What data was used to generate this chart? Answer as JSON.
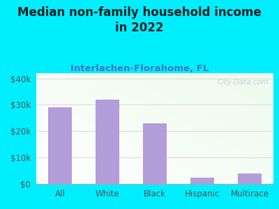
{
  "title": "Median non-family household income\nin 2022",
  "subtitle": "Interlachen-Florahome, FL",
  "categories": [
    "All",
    "White",
    "Black",
    "Hispanic",
    "Multirace"
  ],
  "values": [
    29000,
    32000,
    23000,
    2500,
    4000
  ],
  "bar_color": "#b39ddb",
  "background_outer": "#00eeff",
  "background_plot_top": "#f5fff5",
  "background_plot_bottom": "#e0f5e0",
  "title_color": "#222222",
  "subtitle_color": "#4477bb",
  "tick_color": "#555555",
  "grid_color": "#dddddd",
  "ylabel_ticks": [
    "$0",
    "$10k",
    "$20k",
    "$30k",
    "$40k"
  ],
  "ylabel_values": [
    0,
    10000,
    20000,
    30000,
    40000
  ],
  "ylim": [
    0,
    42000
  ],
  "watermark": "City-Data.com",
  "title_fontsize": 12,
  "subtitle_fontsize": 9.5,
  "tick_fontsize": 8.5,
  "bar_width": 0.5
}
